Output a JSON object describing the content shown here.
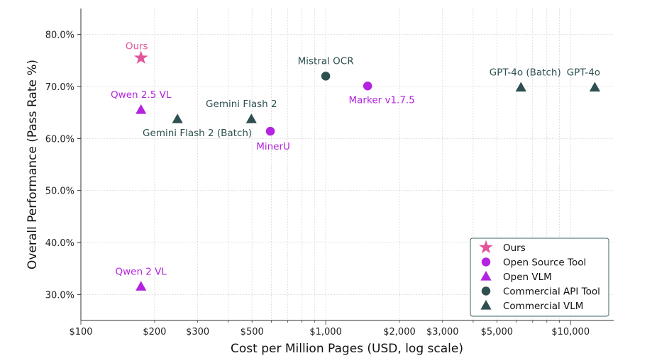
{
  "chart_data": {
    "type": "scatter",
    "title": "",
    "xlabel": "Cost per Million Pages (USD, log scale)",
    "ylabel": "Overall Performance (Pass Rate %)",
    "xscale": "log",
    "xlim": [
      100,
      15000
    ],
    "ylim": [
      25,
      85
    ],
    "xticks": [
      100,
      200,
      300,
      500,
      1000,
      2000,
      3000,
      5000,
      10000
    ],
    "xtick_labels": [
      "$100",
      "$200",
      "$300",
      "$500",
      "$1,000",
      "$2,000",
      "$3,000",
      "$5,000",
      "$10,000"
    ],
    "yticks": [
      30,
      40,
      50,
      60,
      70,
      80
    ],
    "ytick_labels": [
      "30.0%",
      "40.0%",
      "50.0%",
      "60.0%",
      "70.0%",
      "80.0%"
    ],
    "grid": true,
    "legend_position": "bottom-right",
    "categories": [
      {
        "name": "Ours",
        "marker": "star",
        "color": "#e0559a"
      },
      {
        "name": "Open Source Tool",
        "marker": "circle",
        "color": "#b423e0"
      },
      {
        "name": "Open VLM",
        "marker": "triangle",
        "color": "#b423e0"
      },
      {
        "name": "Commercial API Tool",
        "marker": "circle",
        "color": "#2f5050"
      },
      {
        "name": "Commercial VLM",
        "marker": "triangle",
        "color": "#2f5050"
      }
    ],
    "points": [
      {
        "label": "Ours",
        "category": 0,
        "x": 176,
        "y": 75.5
      },
      {
        "label": "Qwen 2.5 VL",
        "category": 2,
        "x": 176,
        "y": 65.5
      },
      {
        "label": "Qwen 2 VL",
        "category": 2,
        "x": 176,
        "y": 31.5
      },
      {
        "label": "Gemini Flash 2 (Batch)",
        "category": 4,
        "x": 248,
        "y": 63.7
      },
      {
        "label": "Gemini Flash 2",
        "category": 4,
        "x": 497,
        "y": 63.7
      },
      {
        "label": "MinerU",
        "category": 1,
        "x": 594,
        "y": 61.4
      },
      {
        "label": "Mistral OCR",
        "category": 3,
        "x": 1000,
        "y": 72.0
      },
      {
        "label": "Marker v1.7.5",
        "category": 1,
        "x": 1483,
        "y": 70.1
      },
      {
        "label": "GPT-4o (Batch)",
        "category": 4,
        "x": 6270,
        "y": 69.8
      },
      {
        "label": "GPT-4o",
        "category": 4,
        "x": 12560,
        "y": 69.8
      }
    ]
  }
}
